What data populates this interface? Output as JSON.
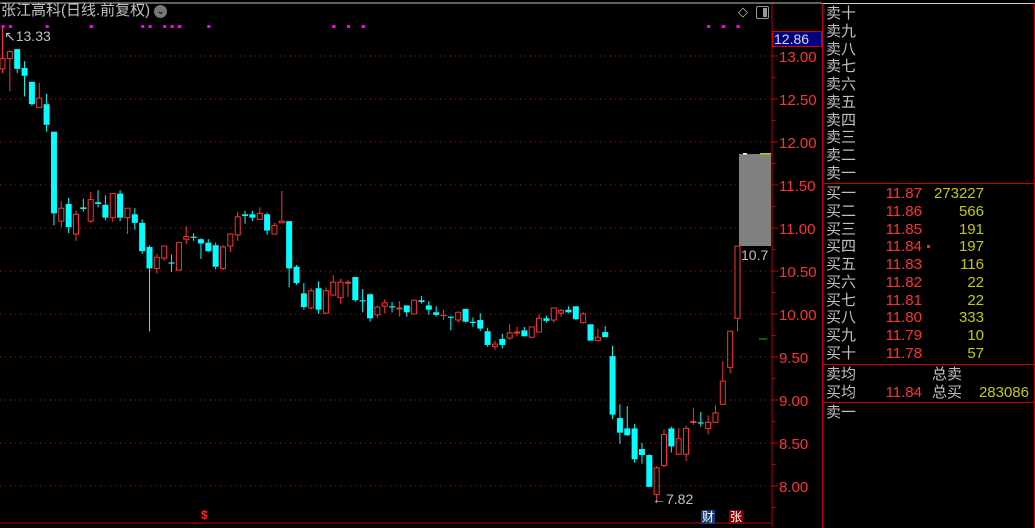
{
  "title": "张江高科(日线.前复权)",
  "current_price_tag": "12.86",
  "high_label": "13.33",
  "low_label": "7.82",
  "overlay_label": "10.7",
  "badges": {
    "cai": "财",
    "zhang": "张"
  },
  "dollar_marker": "$",
  "icons": [
    "chevron-down-icon",
    "diamond-icon",
    "panel-toggle-icon",
    "dollar-icon"
  ],
  "colors": {
    "up": "#ff3232",
    "down": "#00ffff",
    "grid": "#c00000",
    "axis_text": "#ff3232",
    "volume": "#c8c800",
    "marker": "#ff00ff"
  },
  "chart_data": {
    "type": "candlestick",
    "ylim": [
      7.7,
      13.4
    ],
    "y_ticks": [
      "13.00",
      "12.50",
      "12.00",
      "11.50",
      "11.00",
      "10.50",
      "10.00",
      "9.50",
      "9.00",
      "8.50",
      "8.00"
    ],
    "overlay_range": [
      10.79,
      11.86
    ],
    "marker_candles": [
      0,
      1,
      6,
      12,
      19,
      20,
      22,
      23,
      24,
      28,
      45,
      47,
      49,
      96,
      98,
      100
    ],
    "ohlc": [
      [
        12.85,
        13.33,
        12.8,
        12.97
      ],
      [
        12.97,
        13.07,
        12.59,
        13.05
      ],
      [
        13.08,
        13.08,
        12.8,
        12.85
      ],
      [
        12.86,
        12.94,
        12.53,
        12.77
      ],
      [
        12.7,
        12.7,
        12.42,
        12.44
      ],
      [
        12.4,
        12.69,
        12.4,
        12.51
      ],
      [
        12.44,
        12.56,
        12.12,
        12.2
      ],
      [
        12.12,
        12.12,
        11.03,
        11.17
      ],
      [
        11.08,
        11.31,
        11.01,
        11.23
      ],
      [
        11.28,
        11.35,
        10.94,
        11.01
      ],
      [
        10.93,
        11.2,
        10.85,
        11.16
      ],
      [
        11.24,
        11.34,
        11.19,
        11.22
      ],
      [
        11.08,
        11.42,
        11.06,
        11.33
      ],
      [
        11.3,
        11.44,
        11.24,
        11.28
      ],
      [
        11.27,
        11.38,
        11.09,
        11.12
      ],
      [
        11.12,
        11.4,
        11.07,
        11.4
      ],
      [
        11.4,
        11.44,
        11.08,
        11.12
      ],
      [
        11.12,
        11.23,
        10.93,
        11.23
      ],
      [
        11.16,
        11.23,
        10.98,
        11.06
      ],
      [
        11.06,
        11.1,
        10.7,
        10.73
      ],
      [
        10.78,
        10.8,
        9.8,
        10.53
      ],
      [
        10.53,
        10.7,
        10.47,
        10.66
      ],
      [
        10.65,
        10.79,
        10.62,
        10.79
      ],
      [
        10.6,
        10.69,
        10.49,
        10.59
      ],
      [
        10.51,
        10.84,
        10.51,
        10.83
      ],
      [
        10.87,
        11.02,
        10.81,
        10.9
      ],
      [
        10.9,
        10.94,
        10.85,
        10.89
      ],
      [
        10.87,
        10.88,
        10.64,
        10.82
      ],
      [
        10.83,
        10.87,
        10.72,
        10.73
      ],
      [
        10.8,
        10.83,
        10.52,
        10.55
      ],
      [
        10.53,
        10.8,
        10.51,
        10.78
      ],
      [
        10.79,
        10.93,
        10.72,
        10.93
      ],
      [
        10.92,
        11.19,
        10.85,
        11.13
      ],
      [
        11.16,
        11.2,
        11.05,
        11.14
      ],
      [
        11.16,
        11.2,
        11.08,
        11.12
      ],
      [
        11.1,
        11.24,
        11.1,
        11.17
      ],
      [
        11.16,
        11.18,
        10.92,
        10.97
      ],
      [
        10.93,
        11.06,
        10.93,
        11.03
      ],
      [
        11.06,
        11.43,
        11.06,
        11.08
      ],
      [
        11.08,
        11.08,
        10.31,
        10.53
      ],
      [
        10.55,
        10.57,
        10.34,
        10.36
      ],
      [
        10.24,
        10.36,
        10.05,
        10.08
      ],
      [
        10.07,
        10.3,
        10.05,
        10.27
      ],
      [
        10.3,
        10.38,
        10.0,
        10.05
      ],
      [
        10.01,
        10.31,
        10.0,
        10.27
      ],
      [
        10.22,
        10.45,
        10.22,
        10.37
      ],
      [
        10.19,
        10.41,
        10.12,
        10.37
      ],
      [
        10.36,
        10.4,
        10.2,
        10.37
      ],
      [
        10.43,
        10.43,
        10.14,
        10.16
      ],
      [
        10.16,
        10.29,
        10.02,
        10.15
      ],
      [
        10.23,
        10.24,
        9.91,
        9.95
      ],
      [
        9.99,
        10.1,
        9.95,
        10.08
      ],
      [
        10.09,
        10.17,
        10.01,
        10.13
      ],
      [
        10.09,
        10.14,
        10.02,
        10.08
      ],
      [
        10.06,
        10.15,
        9.97,
        10.07
      ],
      [
        10.1,
        10.1,
        9.97,
        10.02
      ],
      [
        10.0,
        10.16,
        10.0,
        10.16
      ],
      [
        10.16,
        10.21,
        10.12,
        10.14
      ],
      [
        10.1,
        10.15,
        9.99,
        10.05
      ],
      [
        10.02,
        10.09,
        9.97,
        9.99
      ],
      [
        9.99,
        10.05,
        9.93,
        9.99
      ],
      [
        9.97,
        9.97,
        9.81,
        9.96
      ],
      [
        9.93,
        10.03,
        9.9,
        10.02
      ],
      [
        10.06,
        10.06,
        9.9,
        9.91
      ],
      [
        9.91,
        9.96,
        9.85,
        9.9
      ],
      [
        9.93,
        10.01,
        9.8,
        9.83
      ],
      [
        9.8,
        9.84,
        9.62,
        9.64
      ],
      [
        9.62,
        9.69,
        9.58,
        9.65
      ],
      [
        9.71,
        9.77,
        9.6,
        9.64
      ],
      [
        9.72,
        9.88,
        9.7,
        9.78
      ],
      [
        9.78,
        9.85,
        9.74,
        9.79
      ],
      [
        9.81,
        9.85,
        9.74,
        9.74
      ],
      [
        9.73,
        9.85,
        9.72,
        9.85
      ],
      [
        9.79,
        10.0,
        9.79,
        9.95
      ],
      [
        9.95,
        9.98,
        9.9,
        9.92
      ],
      [
        9.93,
        10.07,
        9.9,
        10.07
      ],
      [
        10.01,
        10.06,
        9.97,
        10.04
      ],
      [
        10.05,
        10.09,
        10.01,
        10.02
      ],
      [
        10.09,
        10.09,
        9.93,
        9.94
      ],
      [
        9.9,
        10.02,
        9.89,
        10.0
      ],
      [
        9.88,
        9.88,
        9.69,
        9.69
      ],
      [
        9.69,
        9.83,
        9.69,
        9.73
      ],
      [
        9.79,
        9.86,
        9.73,
        9.73
      ],
      [
        9.51,
        9.63,
        8.78,
        8.83
      ],
      [
        8.79,
        8.95,
        8.49,
        8.62
      ],
      [
        8.67,
        8.93,
        8.58,
        8.59
      ],
      [
        8.67,
        8.72,
        8.27,
        8.31
      ],
      [
        8.43,
        8.5,
        8.26,
        8.36
      ],
      [
        8.36,
        8.37,
        7.99,
        7.99
      ],
      [
        7.9,
        8.23,
        7.82,
        8.21
      ],
      [
        8.24,
        8.66,
        8.22,
        8.6
      ],
      [
        8.67,
        8.69,
        8.39,
        8.46
      ],
      [
        8.37,
        8.67,
        8.36,
        8.55
      ],
      [
        8.37,
        8.7,
        8.29,
        8.67
      ],
      [
        8.74,
        8.91,
        8.71,
        8.75
      ],
      [
        8.74,
        8.86,
        8.69,
        8.73
      ],
      [
        8.67,
        8.82,
        8.6,
        8.74
      ],
      [
        8.74,
        8.94,
        8.74,
        8.85
      ],
      [
        8.95,
        9.45,
        8.95,
        9.22
      ],
      [
        9.38,
        9.8,
        9.31,
        9.8
      ],
      [
        9.95,
        10.79,
        9.8,
        10.79
      ]
    ]
  },
  "order_book": {
    "asks": [
      {
        "label": "卖十"
      },
      {
        "label": "卖九"
      },
      {
        "label": "卖八"
      },
      {
        "label": "卖七"
      },
      {
        "label": "卖六"
      },
      {
        "label": "卖五"
      },
      {
        "label": "卖四"
      },
      {
        "label": "卖三"
      },
      {
        "label": "卖二"
      },
      {
        "label": "卖一"
      }
    ],
    "bids": [
      {
        "label": "买一",
        "price": "11.87",
        "volume": "273227"
      },
      {
        "label": "买二",
        "price": "11.86",
        "volume": "566"
      },
      {
        "label": "买三",
        "price": "11.85",
        "volume": "191"
      },
      {
        "label": "买四",
        "price": "11.84",
        "volume": "197"
      },
      {
        "label": "买五",
        "price": "11.83",
        "volume": "116"
      },
      {
        "label": "买六",
        "price": "11.82",
        "volume": "22"
      },
      {
        "label": "买七",
        "price": "11.81",
        "volume": "22"
      },
      {
        "label": "买八",
        "price": "11.80",
        "volume": "333"
      },
      {
        "label": "买九",
        "price": "11.79",
        "volume": "10"
      },
      {
        "label": "买十",
        "price": "11.78",
        "volume": "57"
      }
    ],
    "ask_avg_label": "卖均",
    "total_ask_label": "总卖",
    "bid_avg_label": "买均",
    "bid_avg_price": "11.84",
    "total_bid_label": "总买",
    "total_bid_volume": "283086",
    "tick_label": "卖一"
  }
}
